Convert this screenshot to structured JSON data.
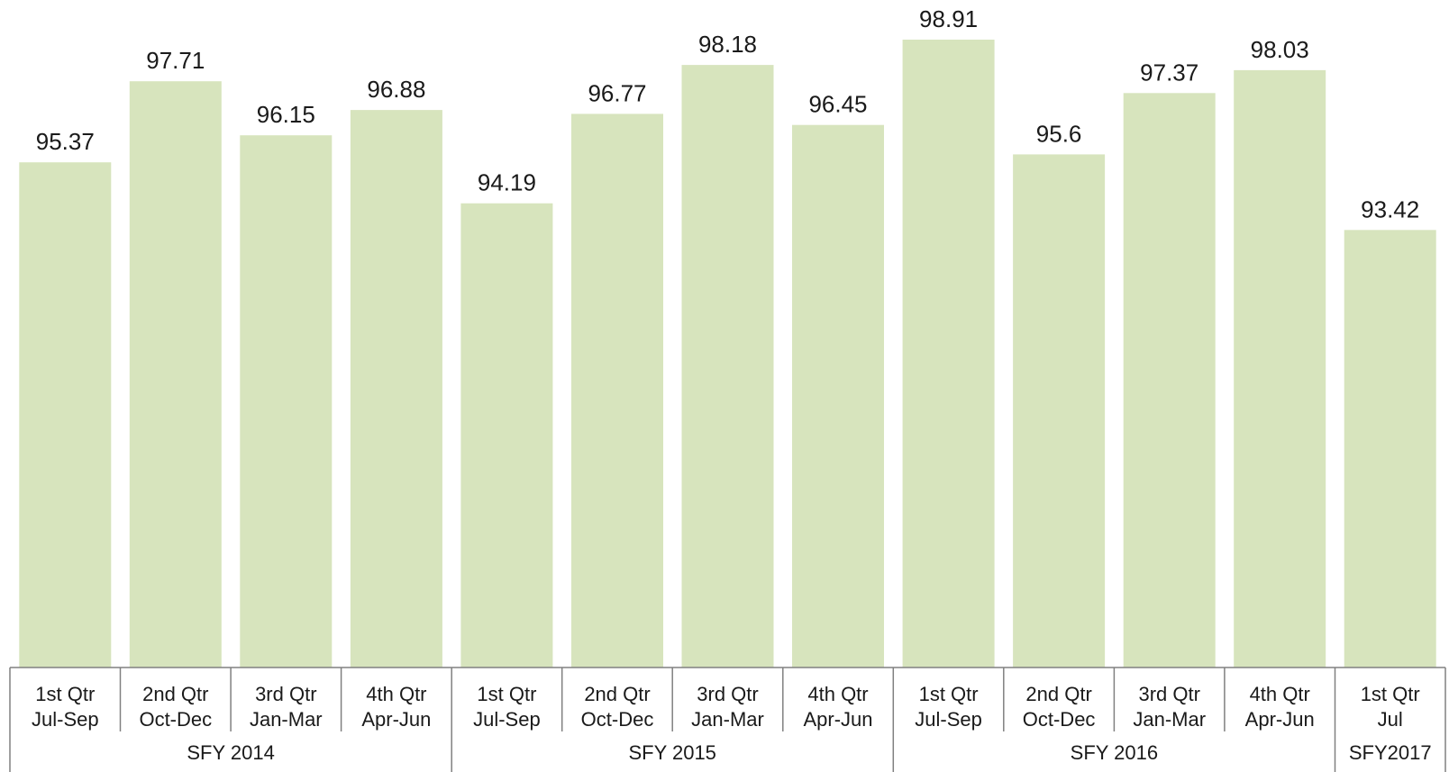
{
  "chart_data": {
    "type": "bar",
    "title": "",
    "xlabel": "",
    "ylabel": "",
    "ylim": [
      80.8,
      99.5
    ],
    "grid": false,
    "legend": "none",
    "bar_color": "#d7e4bd",
    "axis_color": "#808080",
    "categories": [
      {
        "line1": "1st Qtr",
        "line2": "Jul-Sep"
      },
      {
        "line1": "2nd Qtr",
        "line2": "Oct-Dec"
      },
      {
        "line1": "3rd Qtr",
        "line2": "Jan-Mar"
      },
      {
        "line1": "4th Qtr",
        "line2": "Apr-Jun"
      },
      {
        "line1": "1st Qtr",
        "line2": "Jul-Sep"
      },
      {
        "line1": "2nd Qtr",
        "line2": "Oct-Dec"
      },
      {
        "line1": "3rd Qtr",
        "line2": "Jan-Mar"
      },
      {
        "line1": "4th Qtr",
        "line2": "Apr-Jun"
      },
      {
        "line1": "1st Qtr",
        "line2": "Jul-Sep"
      },
      {
        "line1": "2nd Qtr",
        "line2": "Oct-Dec"
      },
      {
        "line1": "3rd Qtr",
        "line2": "Jan-Mar"
      },
      {
        "line1": "4th Qtr",
        "line2": "Apr-Jun"
      },
      {
        "line1": "1st Qtr",
        "line2": "Jul"
      }
    ],
    "groups": [
      {
        "label": "SFY 2014",
        "count": 4
      },
      {
        "label": "SFY 2015",
        "count": 4
      },
      {
        "label": "SFY 2016",
        "count": 4
      },
      {
        "label": "SFY2017",
        "count": 1
      }
    ],
    "values": [
      95.37,
      97.71,
      96.15,
      96.88,
      94.19,
      96.77,
      98.18,
      96.45,
      98.91,
      95.6,
      97.37,
      98.03,
      93.42
    ],
    "value_labels": [
      "95.37",
      "97.71",
      "96.15",
      "96.88",
      "94.19",
      "96.77",
      "98.18",
      "96.45",
      "98.91",
      "95.6",
      "97.37",
      "98.03",
      "93.42"
    ]
  }
}
